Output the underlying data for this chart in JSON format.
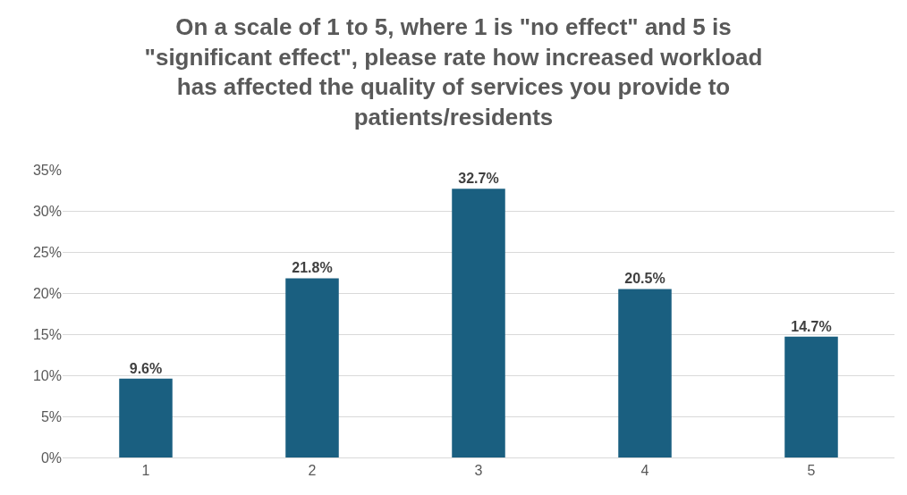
{
  "chart_data": {
    "type": "bar",
    "title": "On a scale of 1 to 5, where 1 is \"no effect\" and 5 is \"significant effect\", please rate how increased workload has affected the quality of services you provide to patients/residents",
    "categories": [
      "1",
      "2",
      "3",
      "4",
      "5"
    ],
    "values": [
      9.6,
      21.8,
      32.7,
      20.5,
      14.7
    ],
    "value_labels": [
      "9.6%",
      "21.8%",
      "32.7%",
      "20.5%",
      "14.7%"
    ],
    "color": "#1a5f80",
    "ylim": [
      0,
      35
    ],
    "yticks": [
      {
        "value": 0,
        "label": "0%"
      },
      {
        "value": 5,
        "label": "5%"
      },
      {
        "value": 10,
        "label": "10%"
      },
      {
        "value": 15,
        "label": "15%"
      },
      {
        "value": 20,
        "label": "20%"
      },
      {
        "value": 25,
        "label": "25%"
      },
      {
        "value": 30,
        "label": "30%"
      },
      {
        "value": 35,
        "label": "35%"
      }
    ],
    "grid": "y",
    "legend": false
  }
}
